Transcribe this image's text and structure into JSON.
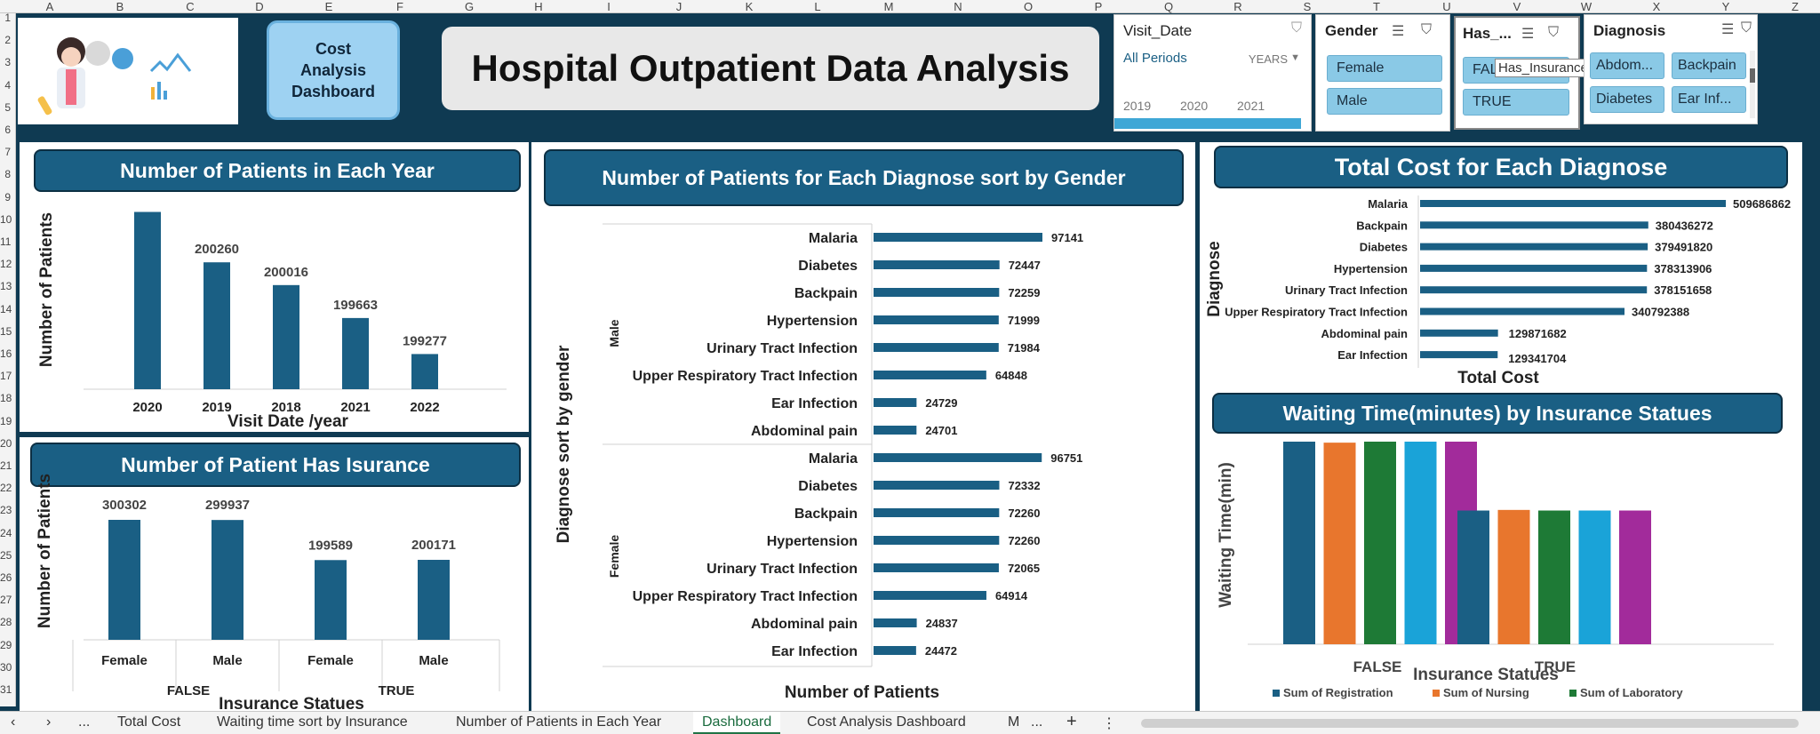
{
  "columns": [
    "A",
    "B",
    "C",
    "D",
    "E",
    "F",
    "G",
    "H",
    "I",
    "J",
    "K",
    "L",
    "M",
    "N",
    "O",
    "P",
    "Q",
    "R",
    "S",
    "T",
    "U",
    "V",
    "W",
    "X",
    "Y",
    "Z"
  ],
  "rows": [
    "1",
    "2",
    "3",
    "4",
    "5",
    "6",
    "7",
    "8",
    "9",
    "10",
    "11",
    "12",
    "13",
    "14",
    "15",
    "16",
    "17",
    "18",
    "19",
    "20",
    "21",
    "22",
    "23",
    "24",
    "25",
    "26",
    "27",
    "28",
    "29",
    "30",
    "31"
  ],
  "header": {
    "button_label": "Cost Analysis Dashboard",
    "title": "Hospital Outpatient Data Analysis"
  },
  "slicers": {
    "visit_date": {
      "title": "Visit_Date",
      "period": "All Periods",
      "unit": "YEARS",
      "years": [
        "2019",
        "2020",
        "2021"
      ]
    },
    "gender": {
      "title": "Gender",
      "items": [
        "Female",
        "Male"
      ]
    },
    "insurance": {
      "title": "Has_...",
      "items": [
        "FAL",
        "TRUE"
      ],
      "tooltip": "Has_Insurance"
    },
    "diagnosis": {
      "title": "Diagnosis",
      "items": [
        "Abdom...",
        "Backpain",
        "Diabetes",
        "Ear Inf..."
      ]
    }
  },
  "colors": {
    "bar": "#1a5f84",
    "registration": "#1a5f84",
    "nursing": "#e8762d",
    "laboratory": "#1e7a36",
    "c4": "#1aa3d8",
    "c5": "#a22b9b"
  },
  "chart_data": [
    {
      "type": "bar",
      "title": "Number of Patients in Each Year",
      "categories": [
        "2020",
        "2019",
        "2018",
        "2021",
        "2022"
      ],
      "values": [
        200800,
        200260,
        200016,
        199663,
        199277
      ],
      "data_labels": [
        "",
        "200260",
        "200016",
        "199663",
        "199277"
      ],
      "xlabel": "Visit Date /year",
      "ylabel": "Number of Patients",
      "ylim": [
        198900,
        200900
      ]
    },
    {
      "type": "bar",
      "title": "Number of Patient Has Isurance",
      "groups": [
        {
          "name": "FALSE",
          "categories": [
            "Female",
            "Male"
          ],
          "values": [
            300302,
            299937
          ]
        },
        {
          "name": "TRUE",
          "categories": [
            "Female",
            "Male"
          ],
          "values": [
            199589,
            200171
          ]
        }
      ],
      "xlabel": "Insurance Statues",
      "ylabel": "Number of Patients"
    },
    {
      "type": "bar",
      "orientation": "horizontal",
      "title": "Number of Patients for Each Diagnose sort by Gender",
      "groups": [
        {
          "name": "Male",
          "categories": [
            "Malaria",
            "Diabetes",
            "Backpain",
            "Hypertension",
            "Urinary Tract Infection",
            "Upper Respiratory Tract Infection",
            "Ear Infection",
            "Abdominal pain"
          ],
          "values": [
            97141,
            72447,
            72259,
            71999,
            71984,
            64848,
            24729,
            24701
          ]
        },
        {
          "name": "Female",
          "categories": [
            "Malaria",
            "Diabetes",
            "Backpain",
            "Hypertension",
            "Urinary Tract Infection",
            "Upper Respiratory Tract Infection",
            "Abdominal pain",
            "Ear Infection"
          ],
          "values": [
            96751,
            72332,
            72260,
            72260,
            72065,
            64914,
            24837,
            24472
          ]
        }
      ],
      "xlabel": "Number of Patients",
      "ylabel": "Diagnose sort by gender"
    },
    {
      "type": "bar",
      "orientation": "horizontal",
      "title": "Total Cost for Each Diagnose",
      "categories": [
        "Malaria",
        "Backpain",
        "Diabetes",
        "Hypertension",
        "Urinary Tract Infection",
        "Upper Respiratory Tract Infection",
        "Abdominal pain",
        "Ear Infection"
      ],
      "values": [
        509686862,
        380436272,
        379491820,
        378313906,
        378151658,
        340792388,
        129871682,
        129341704
      ],
      "xlabel": "Total Cost",
      "ylabel": "Diagnose"
    },
    {
      "type": "bar",
      "title": "Waiting Time(minutes) by Insurance Statues",
      "categories": [
        "FALSE",
        "TRUE"
      ],
      "series": [
        {
          "name": "Sum of Registration",
          "values": [
            100,
            66
          ]
        },
        {
          "name": "Sum of Nursing",
          "values": [
            99.5,
            66.3
          ]
        },
        {
          "name": "",
          "values": [
            100,
            66
          ]
        },
        {
          "name": "",
          "values": [
            100,
            66
          ]
        },
        {
          "name": "Sum of Laboratory",
          "values": [
            100,
            66
          ]
        }
      ],
      "xlabel": "Insurance Statues",
      "ylabel": "Waiting Time(min)"
    }
  ],
  "tabs": [
    "Total Cost",
    "Waiting time sort by Insurance",
    "Number of Patients in Each Year",
    "Dashboard",
    "Cost Analysis Dashboard",
    "M"
  ],
  "tabbar": {
    "prev": "‹",
    "next": "›",
    "more": "...",
    "add": "+",
    "menu": "⋮"
  }
}
